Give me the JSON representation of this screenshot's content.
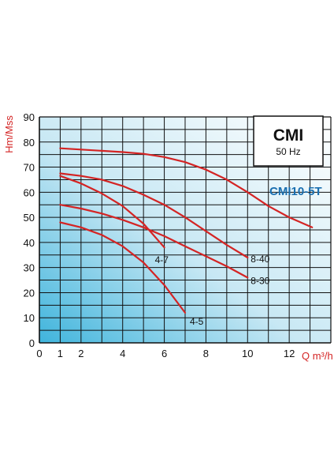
{
  "colors": {
    "curve": "#d42424",
    "axis_title": "#d42424",
    "model_label": "#1a6fb0",
    "grid": "#111111",
    "gradient_left": "#3fb4dc",
    "gradient_right": "#ffffff"
  },
  "chart_data": {
    "type": "line",
    "title": "CMI",
    "subtitle": "50 Hz",
    "model": "CMI10-5T",
    "xlabel": "Q m³/h",
    "ylabel": "Hm/Mss",
    "xlim": [
      0,
      14
    ],
    "ylim": [
      0,
      90
    ],
    "grid": true,
    "x_tick_labels": [
      {
        "x": 0,
        "label": "0"
      },
      {
        "x": 1,
        "label": "1"
      },
      {
        "x": 2,
        "label": "2"
      },
      {
        "x": 4,
        "label": "4"
      },
      {
        "x": 6,
        "label": "6"
      },
      {
        "x": 8,
        "label": "8"
      },
      {
        "x": 10,
        "label": "10"
      },
      {
        "x": 12,
        "label": "12"
      }
    ],
    "y_ticks": [
      0,
      10,
      20,
      30,
      40,
      50,
      60,
      70,
      80,
      90
    ],
    "series": [
      {
        "label": "",
        "x": [
          1,
          2,
          3,
          4,
          5,
          6,
          7,
          8,
          9,
          10,
          11,
          12,
          13.1
        ],
        "y": [
          77.5,
          77,
          76.5,
          76,
          75.3,
          74,
          72,
          69,
          65,
          60,
          54.5,
          50,
          46
        ]
      },
      {
        "label": "8-40",
        "x": [
          1,
          2,
          3,
          4,
          5,
          6,
          7,
          8,
          9,
          10
        ],
        "y": [
          67.5,
          66.5,
          65,
          62.5,
          59,
          55,
          50,
          44.5,
          39,
          34
        ]
      },
      {
        "label": "8-30",
        "x": [
          1,
          2,
          3,
          4,
          5,
          6,
          7,
          8,
          9,
          10
        ],
        "y": [
          55,
          53.5,
          51.5,
          49,
          46,
          42.5,
          38.5,
          34.5,
          30.5,
          26
        ]
      },
      {
        "label": "4-7",
        "x": [
          1,
          2,
          3,
          4,
          5,
          6
        ],
        "y": [
          66.5,
          63.5,
          59.5,
          54.5,
          47.5,
          38
        ]
      },
      {
        "label": "4-5",
        "x": [
          1,
          2,
          3,
          4,
          5,
          6,
          7
        ],
        "y": [
          48,
          46,
          43,
          38.5,
          32,
          23,
          12
        ]
      }
    ]
  }
}
